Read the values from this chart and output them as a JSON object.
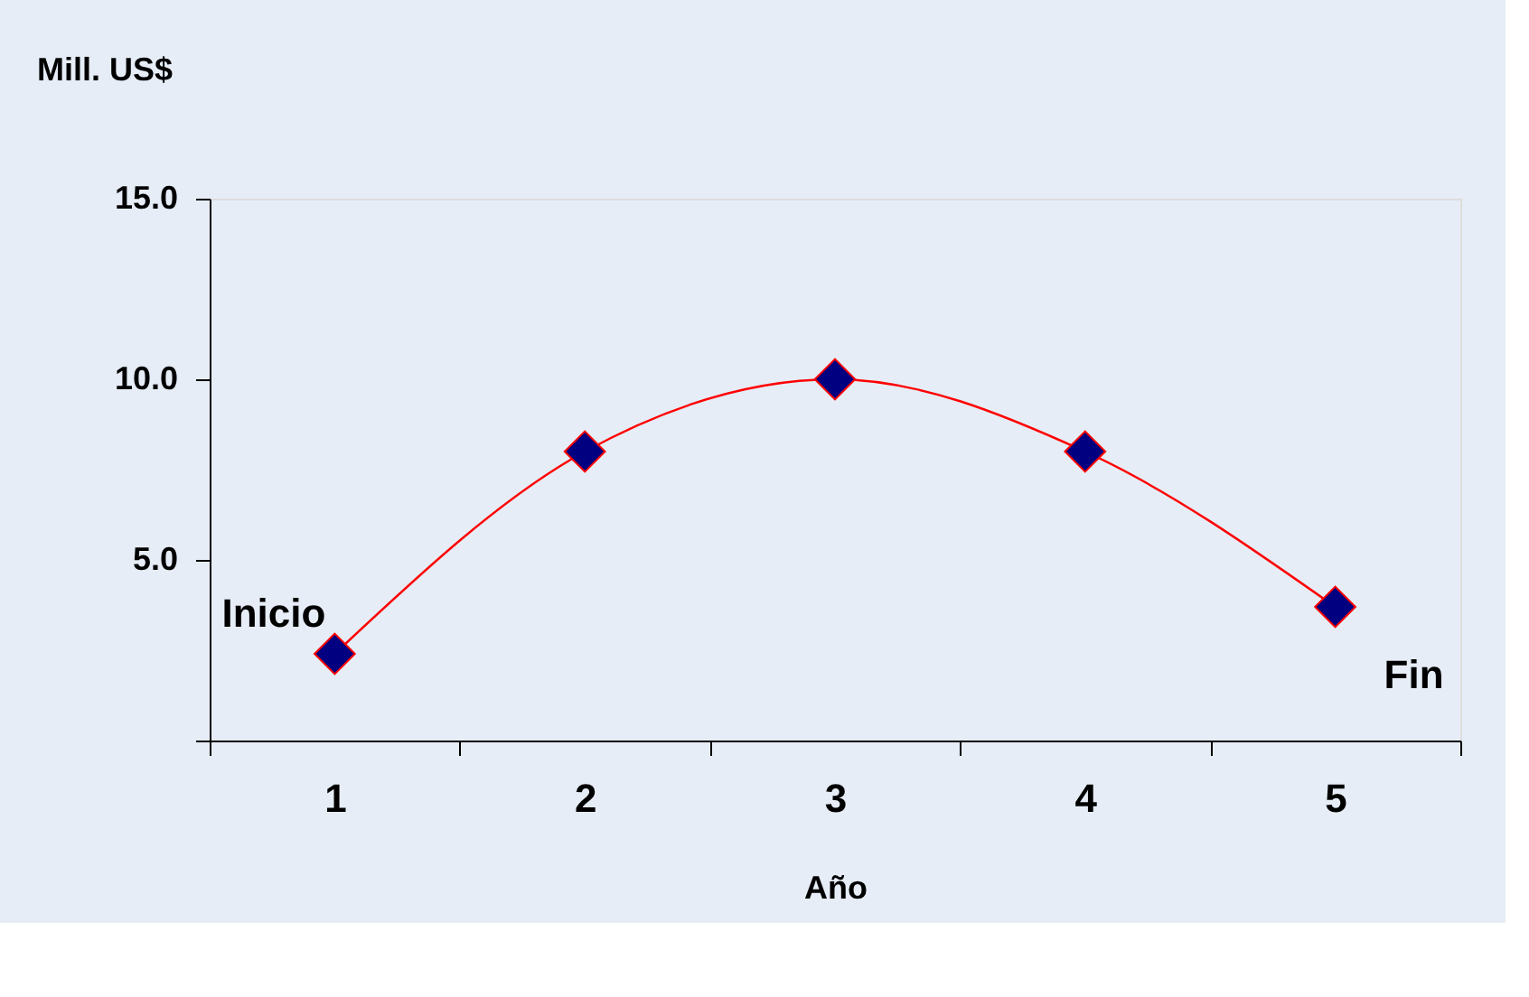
{
  "chart_data": {
    "type": "line",
    "xlabel": "Año",
    "ylabel": "Mill.  US$",
    "categories": [
      "1",
      "2",
      "3",
      "4",
      "5"
    ],
    "series": [
      {
        "color": "#ff0000",
        "colors": [
          "#000080",
          "#000080",
          "#000080",
          "#000080",
          "#000080"
        ],
        "values": [
          2.4,
          8.0,
          10.0,
          8.0,
          3.7
        ]
      }
    ],
    "ylim": [
      0,
      15
    ],
    "yticks": [
      {
        "value": 0,
        "label": null
      },
      {
        "value": 5,
        "label": "5.0"
      },
      {
        "value": 10,
        "label": "10.0"
      },
      {
        "value": 15,
        "label": "15.0"
      }
    ],
    "marker": "diamond",
    "grid": false,
    "annotations": [
      {
        "text": "Inicio",
        "x": "1",
        "y": 2.4
      },
      {
        "text": "Fin",
        "x": "5",
        "y": 3.7
      }
    ]
  }
}
